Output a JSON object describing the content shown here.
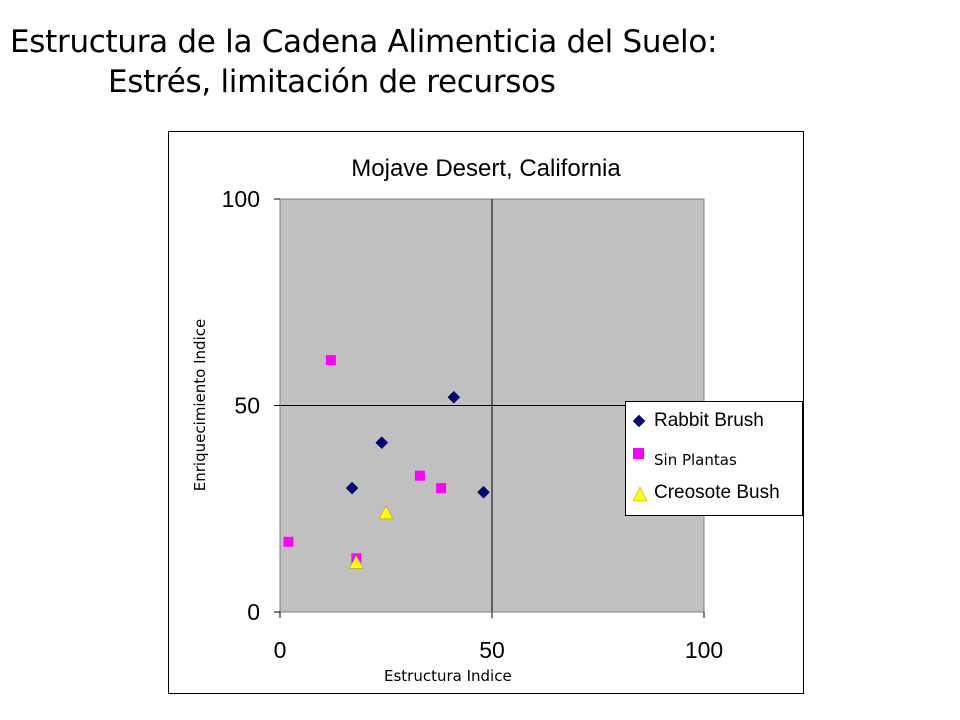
{
  "slide": {
    "title_line1": "Estructura de la Cadena Alimenticia del Suelo:",
    "title_line2": "Estrés, limitación de recursos"
  },
  "chart_data": {
    "type": "scatter",
    "title": "Mojave Desert, California",
    "xlabel": "Estructura Indice",
    "ylabel": "Enriquecimiento Indice",
    "xlim": [
      0,
      100
    ],
    "ylim": [
      0,
      100
    ],
    "x_ticks": [
      "0",
      "50",
      "100"
    ],
    "y_ticks": [
      "0",
      "50",
      "100"
    ],
    "grid": true,
    "plot_background": "#c0c0c0",
    "legend_position": "right",
    "series": [
      {
        "name": "Rabbit Brush",
        "marker": "diamond",
        "color": "#000080",
        "points": [
          [
            17,
            30
          ],
          [
            24,
            41
          ],
          [
            41,
            52
          ],
          [
            48,
            29
          ]
        ]
      },
      {
        "name": "Sin Plantas",
        "marker": "square",
        "color": "#ff00ff",
        "points": [
          [
            2,
            17
          ],
          [
            12,
            61
          ],
          [
            18,
            13
          ],
          [
            33,
            33
          ],
          [
            38,
            30
          ]
        ]
      },
      {
        "name": "Creosote Bush",
        "marker": "triangle",
        "color": "#ffff00",
        "points": [
          [
            18,
            12
          ],
          [
            25,
            24
          ]
        ]
      }
    ]
  }
}
